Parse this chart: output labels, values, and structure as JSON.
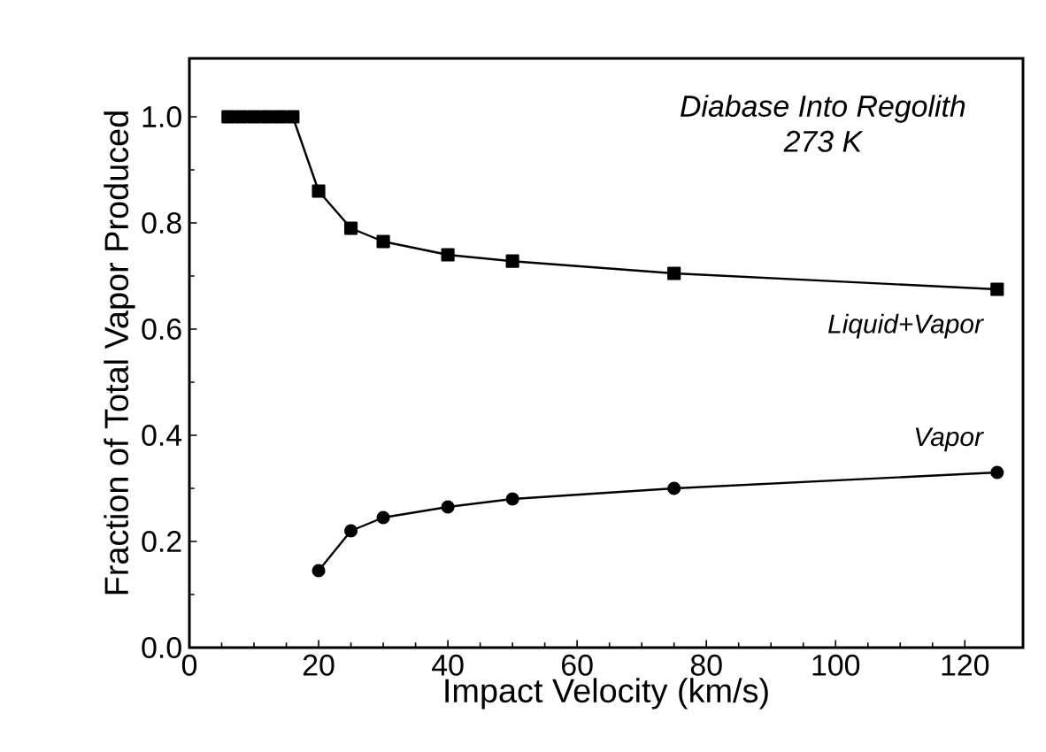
{
  "chart_data": {
    "type": "line",
    "xlabel": "Impact Velocity (km/s)",
    "ylabel": "Fraction of Total Vapor Produced",
    "annotations": [
      "Diabase Into Regolith",
      "273 K"
    ],
    "series": [
      {
        "name": "Liquid+Vapor",
        "color": "#000000",
        "marker": "square",
        "x": [
          6,
          8,
          10,
          12,
          14,
          16,
          20,
          25,
          30,
          40,
          50,
          75,
          125
        ],
        "values": [
          1.0,
          1.0,
          1.0,
          1.0,
          1.0,
          1.0,
          0.86,
          0.79,
          0.765,
          0.74,
          0.728,
          0.705,
          0.675
        ]
      },
      {
        "name": "Vapor",
        "color": "#000000",
        "marker": "circle",
        "x": [
          20,
          25,
          30,
          40,
          50,
          75,
          125
        ],
        "values": [
          0.145,
          0.22,
          0.245,
          0.265,
          0.28,
          0.3,
          0.33
        ]
      }
    ],
    "xlim": [
      0,
      129
    ],
    "ylim": [
      0,
      1.11
    ],
    "xticks": [
      0,
      20,
      40,
      60,
      80,
      100,
      120
    ],
    "yticks": [
      {
        "value": 0,
        "label": "0.0"
      },
      0.2,
      0.4,
      0.6,
      0.8,
      {
        "value": 1,
        "label": "1.0"
      }
    ],
    "grid": false,
    "legend": false,
    "line_style": "solid"
  }
}
